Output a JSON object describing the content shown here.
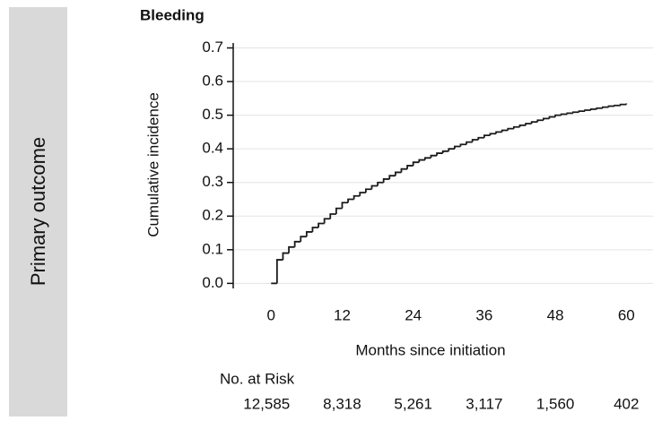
{
  "side_label": "Primary outcome",
  "chart_data": {
    "type": "step",
    "title": "Bleeding",
    "x_label": "Months since initiation",
    "y_label": "Cumulative incidence",
    "x": [
      0,
      1,
      2,
      3,
      4,
      5,
      6,
      7,
      8,
      9,
      10,
      11,
      12,
      13,
      14,
      15,
      16,
      17,
      18,
      19,
      20,
      21,
      22,
      23,
      24,
      25,
      26,
      27,
      28,
      29,
      30,
      31,
      32,
      33,
      34,
      35,
      36,
      37,
      38,
      39,
      40,
      41,
      42,
      43,
      44,
      45,
      46,
      47,
      48,
      49,
      50,
      51,
      52,
      53,
      54,
      55,
      56,
      57,
      58,
      59,
      60
    ],
    "values": [
      0,
      0.07,
      0.09,
      0.108,
      0.124,
      0.139,
      0.153,
      0.166,
      0.178,
      0.192,
      0.206,
      0.223,
      0.24,
      0.25,
      0.26,
      0.27,
      0.28,
      0.29,
      0.3,
      0.31,
      0.32,
      0.33,
      0.34,
      0.35,
      0.36,
      0.367,
      0.373,
      0.38,
      0.387,
      0.393,
      0.4,
      0.407,
      0.413,
      0.42,
      0.427,
      0.433,
      0.44,
      0.445,
      0.45,
      0.455,
      0.46,
      0.465,
      0.47,
      0.475,
      0.48,
      0.485,
      0.49,
      0.495,
      0.5,
      0.503,
      0.506,
      0.509,
      0.512,
      0.515,
      0.518,
      0.521,
      0.524,
      0.527,
      0.529,
      0.532,
      0.535
    ],
    "color": "#1a1a1a",
    "xlim": [
      -6.4,
      64.5
    ],
    "xticks": [
      0,
      12,
      24,
      36,
      48,
      60
    ],
    "ylim": [
      -0.015,
      0.72
    ],
    "yticks": [
      {
        "value": 0,
        "label": "0.0"
      },
      0.1,
      0.2,
      0.3,
      0.4,
      0.5,
      0.6,
      0.7
    ],
    "grid": true,
    "risk_table": {
      "title": "No. at Risk",
      "counts": [
        "12,585",
        "8,318",
        "5,261",
        "3,117",
        "1,560",
        "402"
      ]
    }
  }
}
